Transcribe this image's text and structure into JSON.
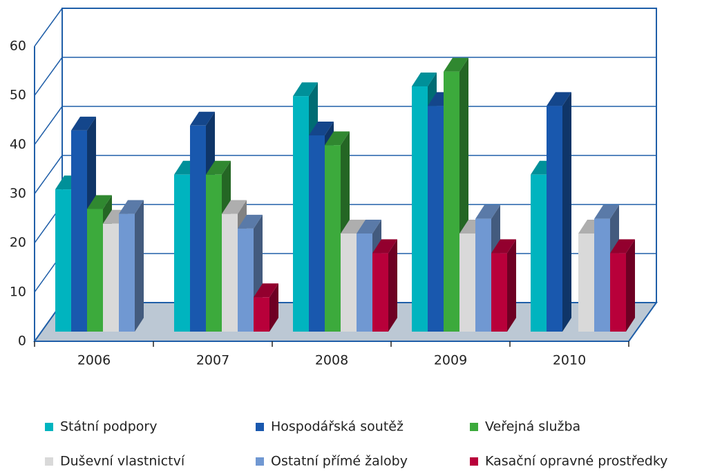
{
  "chart_data": {
    "type": "bar3d",
    "categories": [
      "2006",
      "2007",
      "2008",
      "2009",
      "2010"
    ],
    "series": [
      {
        "name": "Státní podpory",
        "color": "#00b4bf",
        "values": [
          29,
          32,
          48,
          50,
          32
        ]
      },
      {
        "name": "Hospodářská soutěž",
        "color": "#1958ae",
        "values": [
          41,
          42,
          40,
          46,
          46
        ]
      },
      {
        "name": "Veřejná služba",
        "color": "#3caa3c",
        "values": [
          25,
          32,
          38,
          53,
          null
        ]
      },
      {
        "name": "Duševní vlastnictví",
        "color": "#d9d9d9",
        "values": [
          22,
          24,
          20,
          20,
          20
        ]
      },
      {
        "name": "Ostatní přímé žaloby",
        "color": "#7098d2",
        "values": [
          24,
          21,
          20,
          23,
          23
        ]
      },
      {
        "name": "Kasační opravné prostředky",
        "color": "#b8003a",
        "values": [
          null,
          7,
          16,
          16,
          16
        ]
      }
    ],
    "ylim": [
      0,
      60
    ],
    "yticks": [
      0,
      10,
      20,
      30,
      40,
      50,
      60
    ],
    "grid": true
  }
}
